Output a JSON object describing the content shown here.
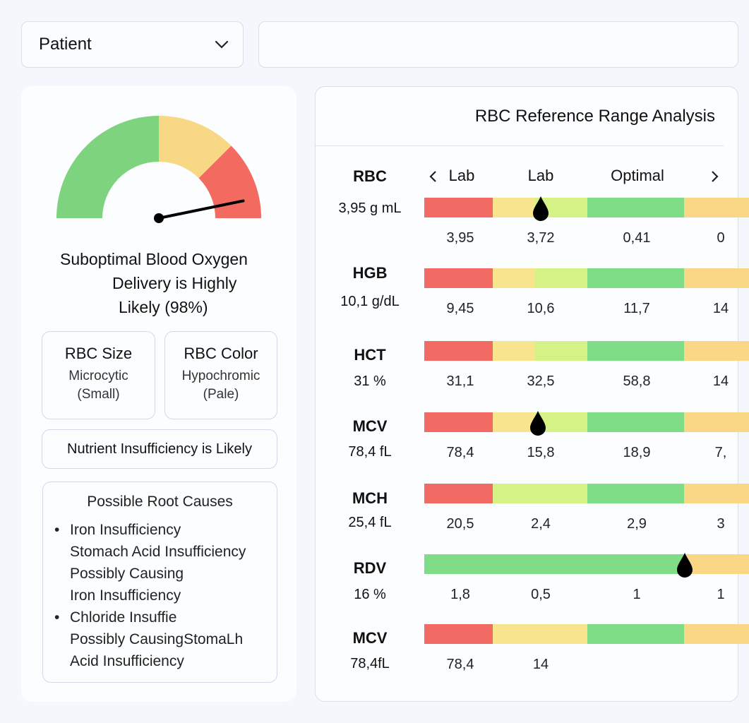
{
  "selector": {
    "value": "Patient",
    "icon": "chevron-down-icon"
  },
  "gauge": {
    "value_percent": 98,
    "zones": [
      "#7dd37e",
      "#f8d885",
      "#f26a60"
    ]
  },
  "headline": {
    "line1": "Suboptimal Blood Oxygen",
    "line2": "Delivery is Highly",
    "line3": "Likely (98%)"
  },
  "size_card": {
    "title": "RBC Size",
    "line1": "Microcytic",
    "line2": "(Small)"
  },
  "color_card": {
    "title": "RBC Color",
    "line1": "Hypochromic",
    "line2": "(Pale)"
  },
  "nutrient": "Nutrient Insufficiency is Likely",
  "causes": {
    "title": "Possible Root Causes",
    "items": [
      "Iron Insufficiency",
      "Stomach Acid Insufficiency",
      "Possibly Causing",
      "Iron Insufficiency",
      "Chloride Insuffie",
      "Possibly CausingStomaLh",
      "Acid Insufficiency"
    ]
  },
  "panel": {
    "title": "RBC Reference Range Analysis",
    "col_headers": [
      "Lab",
      "Lab",
      "Optimal"
    ],
    "prev_icon": "chevron-left-icon",
    "next_icon": "chevron-right-icon"
  },
  "rows": [
    {
      "name": "RBC",
      "value": "3,95 g mL",
      "zones": [
        "red",
        "yellow",
        "lime",
        "green",
        "orange"
      ],
      "marker": 0.39,
      "vals": [
        "3,95",
        "3,72",
        "0,41",
        "0"
      ]
    },
    {
      "name": "HGB",
      "value": "10,1 g/dL",
      "zones": [
        "red",
        "yellow",
        "lime",
        "green",
        "orange"
      ],
      "marker": null,
      "vals": [
        "9,45",
        "10,6",
        "11,7",
        "14"
      ]
    },
    {
      "name": "HCT",
      "value": "31 %",
      "zones": [
        "red",
        "yellow",
        "lime",
        "green",
        "orange"
      ],
      "marker": null,
      "vals": [
        "31,1",
        "32,5",
        "58,8",
        "14"
      ]
    },
    {
      "name": "MCV",
      "value": "78,4 fL",
      "zones": [
        "red",
        "yellow",
        "lime",
        "green",
        "orange"
      ],
      "marker": 0.38,
      "vals": [
        "78,4",
        "15,8",
        "18,9",
        "7,"
      ]
    },
    {
      "name": "MCH",
      "value": "25,4 fL",
      "zones": [
        "red",
        "lime-wide",
        "green",
        "orange"
      ],
      "marker": null,
      "vals": [
        "20,5",
        "2,4",
        "2,9",
        "3"
      ]
    },
    {
      "name": "RDV",
      "value": "16 %",
      "zones": [
        "green-wide",
        "orange"
      ],
      "marker": 0.87,
      "vals": [
        "1,8",
        "0,5",
        "1",
        "1"
      ]
    },
    {
      "name": "MCV",
      "value": "78,4fL",
      "zones": [
        "red",
        "yellow-wide",
        "green",
        "orange"
      ],
      "marker": null,
      "vals": [
        "78,4",
        "14"
      ]
    }
  ]
}
